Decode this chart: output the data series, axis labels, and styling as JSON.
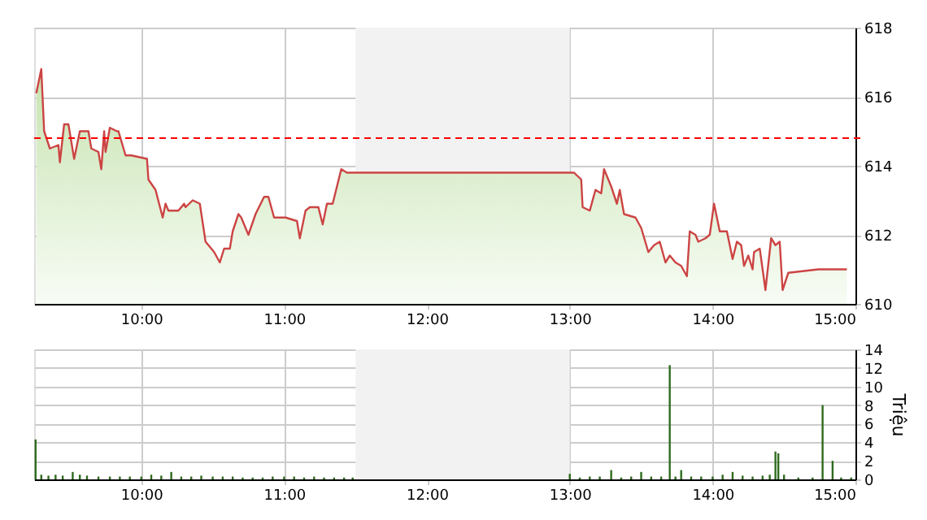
{
  "chart_data": [
    {
      "type": "area",
      "xlim": [
        9.25,
        15
      ],
      "ylim": [
        610,
        618
      ],
      "xticks": [
        {
          "value": 10,
          "label": "10:00"
        },
        {
          "value": 11,
          "label": "11:00"
        },
        {
          "value": 12,
          "label": "12:00"
        },
        {
          "value": 13,
          "label": "13:00"
        },
        {
          "value": 14,
          "label": "14:00"
        },
        {
          "value": 15,
          "label": "15:00"
        }
      ],
      "yticks": [
        610,
        612,
        614,
        616,
        618
      ],
      "grid": true,
      "marker": "none",
      "line_style": "solid",
      "ref_lines": [
        {
          "axis": "y",
          "value": 614.8,
          "color": "#ff0000",
          "line_style": "dashed"
        }
      ],
      "bands": [
        {
          "axis": "x",
          "from": 11.5,
          "to": 13,
          "color": "#f2f2f2"
        }
      ],
      "series": [
        {
          "color": "#cc4444",
          "x": [
            9.265,
            9.3,
            9.32,
            9.36,
            9.42,
            9.43,
            9.46,
            9.49,
            9.53,
            9.57,
            9.63,
            9.65,
            9.7,
            9.72,
            9.74,
            9.75,
            9.78,
            9.83,
            9.84,
            9.89,
            9.93,
            10.04,
            10.05,
            10.1,
            10.15,
            10.17,
            10.19,
            10.26,
            10.3,
            10.31,
            10.36,
            10.41,
            10.45,
            10.51,
            10.55,
            10.58,
            10.62,
            10.64,
            10.68,
            10.7,
            10.75,
            10.8,
            10.86,
            10.89,
            10.93,
            11.01,
            11.09,
            11.11,
            11.15,
            11.18,
            11.24,
            11.27,
            11.3,
            11.34,
            11.37,
            11.4,
            11.44,
            11.48,
            13.03,
            13.08,
            13.09,
            13.14,
            13.18,
            13.22,
            13.24,
            13.29,
            13.33,
            13.35,
            13.38,
            13.46,
            13.5,
            13.55,
            13.59,
            13.63,
            13.67,
            13.7,
            13.74,
            13.78,
            13.82,
            13.84,
            13.88,
            13.9,
            13.95,
            13.98,
            14.01,
            14.05,
            14.1,
            14.14,
            14.17,
            14.2,
            14.22,
            14.25,
            14.28,
            14.29,
            14.33,
            14.35,
            14.37,
            14.41,
            14.44,
            14.47,
            14.49,
            14.53,
            14.74,
            14.94
          ],
          "values": [
            616.1,
            616.8,
            615.0,
            614.5,
            614.6,
            614.1,
            615.2,
            615.2,
            614.2,
            615.0,
            615.0,
            614.5,
            614.4,
            613.9,
            615.0,
            614.4,
            615.1,
            615.0,
            615.0,
            614.3,
            614.3,
            614.2,
            613.6,
            613.3,
            612.5,
            612.9,
            612.7,
            612.7,
            612.9,
            612.8,
            613.0,
            612.9,
            611.8,
            611.5,
            611.2,
            611.6,
            611.6,
            612.1,
            612.6,
            612.5,
            612.0,
            612.6,
            613.1,
            613.1,
            612.5,
            612.5,
            612.4,
            611.9,
            612.7,
            612.8,
            612.8,
            612.3,
            612.9,
            612.9,
            613.4,
            613.9,
            613.8,
            613.8,
            613.8,
            613.6,
            612.8,
            612.7,
            613.3,
            613.2,
            613.9,
            613.4,
            612.9,
            613.3,
            612.6,
            612.5,
            612.2,
            611.5,
            611.7,
            611.8,
            611.2,
            611.4,
            611.2,
            611.1,
            610.8,
            612.1,
            612.0,
            611.8,
            611.9,
            612.0,
            612.9,
            612.1,
            612.1,
            611.3,
            611.8,
            611.7,
            611.1,
            611.4,
            611.0,
            611.5,
            611.6,
            611.0,
            610.4,
            611.9,
            611.7,
            611.8,
            610.4,
            610.9,
            611.0,
            611.0
          ]
        }
      ]
    },
    {
      "type": "bar",
      "xlim": [
        9.25,
        15
      ],
      "ylim": [
        0,
        14
      ],
      "ylabel": "Triệu",
      "xticks": [
        {
          "value": 10,
          "label": "10:00"
        },
        {
          "value": 11,
          "label": "11:00"
        },
        {
          "value": 12,
          "label": "12:00"
        },
        {
          "value": 13,
          "label": "13:00"
        },
        {
          "value": 14,
          "label": "14:00"
        },
        {
          "value": 15,
          "label": "15:00"
        }
      ],
      "yticks": [
        0,
        2,
        4,
        6,
        8,
        10,
        12,
        14
      ],
      "grid": true,
      "bands": [
        {
          "axis": "x",
          "from": 11.5,
          "to": 13,
          "color": "#f2f2f2"
        }
      ],
      "series": [
        {
          "color": "#2e6b1e",
          "x": [
            9.26,
            9.3,
            9.35,
            9.4,
            9.45,
            9.52,
            9.57,
            9.62,
            9.7,
            9.78,
            9.85,
            9.92,
            10.0,
            10.07,
            10.14,
            10.21,
            10.28,
            10.35,
            10.42,
            10.5,
            10.57,
            10.64,
            10.71,
            10.78,
            10.85,
            10.92,
            11.0,
            11.07,
            11.14,
            11.21,
            11.28,
            11.35,
            11.42,
            11.48,
            13.0,
            13.07,
            13.14,
            13.21,
            13.29,
            13.36,
            13.43,
            13.5,
            13.57,
            13.64,
            13.7,
            13.74,
            13.78,
            13.85,
            13.92,
            14.0,
            14.07,
            14.14,
            14.21,
            14.28,
            14.35,
            14.4,
            14.44,
            14.46,
            14.5,
            14.6,
            14.7,
            14.77,
            14.84,
            14.9,
            14.97
          ],
          "values": [
            4.3,
            0.5,
            0.4,
            0.5,
            0.4,
            0.8,
            0.5,
            0.4,
            0.3,
            0.3,
            0.3,
            0.3,
            0.3,
            0.5,
            0.4,
            0.8,
            0.3,
            0.3,
            0.4,
            0.3,
            0.3,
            0.3,
            0.2,
            0.2,
            0.2,
            0.3,
            0.3,
            0.3,
            0.2,
            0.3,
            0.2,
            0.2,
            0.2,
            0.2,
            0.6,
            0.2,
            0.3,
            0.3,
            1.0,
            0.2,
            0.3,
            0.8,
            0.3,
            0.3,
            12.3,
            0.3,
            1.0,
            0.3,
            0.3,
            0.3,
            0.5,
            0.8,
            0.4,
            0.3,
            0.4,
            0.5,
            3.0,
            2.8,
            0.5,
            0.2,
            0.2,
            8.0,
            2.0,
            0.2,
            0.2
          ]
        }
      ]
    }
  ]
}
